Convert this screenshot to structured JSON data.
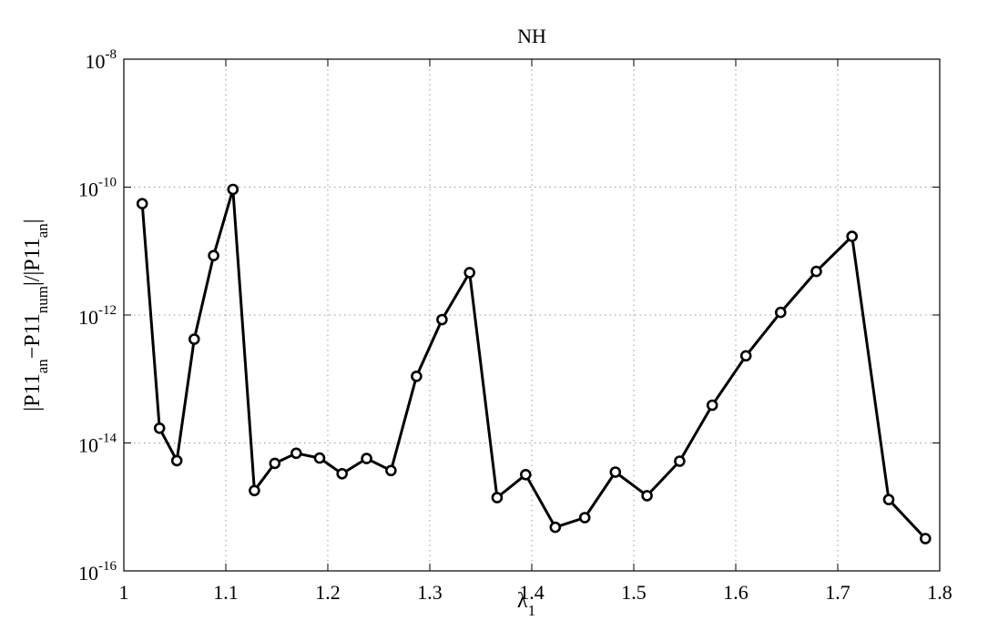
{
  "chart_data": {
    "type": "line",
    "title": "NH",
    "xlabel": {
      "base": "λ",
      "sub": "1"
    },
    "ylabel": [
      {
        "t": "|P11",
        "sub": false
      },
      {
        "t": "an",
        "sub": true
      },
      {
        "t": "−P11",
        "sub": false
      },
      {
        "t": "num",
        "sub": true
      },
      {
        "t": "|/|P11",
        "sub": false
      },
      {
        "t": "an",
        "sub": true
      },
      {
        "t": "|",
        "sub": false
      }
    ],
    "xlim": [
      1,
      1.8
    ],
    "ylim": [
      1e-16,
      1e-08
    ],
    "yscale": "log",
    "grid": true,
    "x_ticks": [
      "1",
      "1.1",
      "1.2",
      "1.3",
      "1.4",
      "1.5",
      "1.6",
      "1.7",
      "1.8"
    ],
    "y_ticks": [
      {
        "base": "10",
        "exp": "-16",
        "value": 1e-16
      },
      {
        "base": "10",
        "exp": "-14",
        "value": 1e-14
      },
      {
        "base": "10",
        "exp": "-12",
        "value": 1e-12
      },
      {
        "base": "10",
        "exp": "-10",
        "value": 1e-10
      },
      {
        "base": "10",
        "exp": "-8",
        "value": 1e-08
      }
    ],
    "line_color": "#000000",
    "marker": "circle",
    "series": [
      {
        "x": [
          1.018,
          1.035,
          1.052,
          1.069,
          1.088,
          1.107,
          1.128,
          1.148,
          1.169,
          1.192,
          1.214,
          1.238,
          1.262,
          1.287,
          1.312,
          1.339,
          1.366,
          1.394,
          1.423,
          1.452,
          1.482,
          1.513,
          1.545,
          1.577,
          1.61,
          1.644,
          1.679,
          1.714,
          1.75,
          1.786
        ],
        "y": [
          5.5e-11,
          1.7e-14,
          5.3e-15,
          4.2e-13,
          8.5e-12,
          9.2e-11,
          1.8e-15,
          4.8e-15,
          6.9e-15,
          5.8e-15,
          3.3e-15,
          5.7e-15,
          3.7e-15,
          1.1e-13,
          8.5e-13,
          4.6e-12,
          1.4e-15,
          3.2e-15,
          4.8e-16,
          6.8e-16,
          3.5e-15,
          1.5e-15,
          5.2e-15,
          3.9e-14,
          2.3e-13,
          1.1e-12,
          4.8e-12,
          1.7e-11,
          1.3e-15,
          3.2e-16
        ]
      }
    ]
  }
}
